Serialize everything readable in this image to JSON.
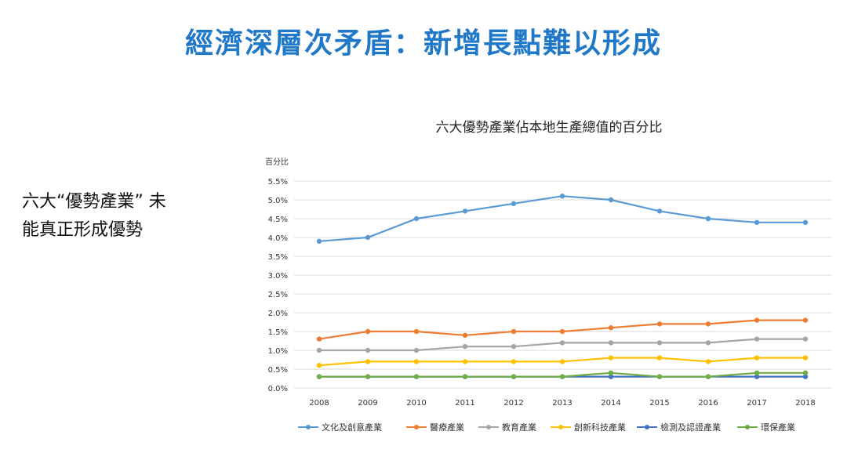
{
  "slide": {
    "title": "經濟深層次矛盾：新增長點難以形成",
    "side_text_line1": "六大“優勢產業” 未",
    "side_text_line2": "能真正形成優勢"
  },
  "chart_data": {
    "type": "line",
    "title": "六大優勢產業佔本地生產總值的百分比",
    "ylabel": "百分比",
    "xlabel": "",
    "x": [
      "2008",
      "2009",
      "2010",
      "2011",
      "2012",
      "2013",
      "2014",
      "2015",
      "2016",
      "2017",
      "2018"
    ],
    "ylim": [
      0,
      5.5
    ],
    "yticks": [
      "0.0%",
      "0.5%",
      "1.0%",
      "1.5%",
      "2.0%",
      "2.5%",
      "3.0%",
      "3.5%",
      "4.0%",
      "4.5%",
      "5.0%",
      "5.5%"
    ],
    "grid": true,
    "legend_position": "bottom",
    "series": [
      {
        "name": "文化及創意產業",
        "color": "#5b9bd5",
        "values": [
          3.9,
          4.0,
          4.5,
          4.7,
          4.9,
          5.1,
          5.0,
          4.7,
          4.5,
          4.4,
          4.4
        ]
      },
      {
        "name": "醫療產業",
        "color": "#ed7d31",
        "values": [
          1.3,
          1.5,
          1.5,
          1.4,
          1.5,
          1.5,
          1.6,
          1.7,
          1.7,
          1.8,
          1.8
        ]
      },
      {
        "name": "教育產業",
        "color": "#a5a5a5",
        "values": [
          1.0,
          1.0,
          1.0,
          1.1,
          1.1,
          1.2,
          1.2,
          1.2,
          1.2,
          1.3,
          1.3
        ]
      },
      {
        "name": "創新科技產業",
        "color": "#ffc000",
        "values": [
          0.6,
          0.7,
          0.7,
          0.7,
          0.7,
          0.7,
          0.8,
          0.8,
          0.7,
          0.8,
          0.8
        ]
      },
      {
        "name": "檢測及認證產業",
        "color": "#4472c4",
        "values": [
          0.3,
          0.3,
          0.3,
          0.3,
          0.3,
          0.3,
          0.3,
          0.3,
          0.3,
          0.3,
          0.3
        ]
      },
      {
        "name": "環保產業",
        "color": "#70ad47",
        "values": [
          0.3,
          0.3,
          0.3,
          0.3,
          0.3,
          0.3,
          0.4,
          0.3,
          0.3,
          0.4,
          0.4
        ]
      }
    ]
  }
}
